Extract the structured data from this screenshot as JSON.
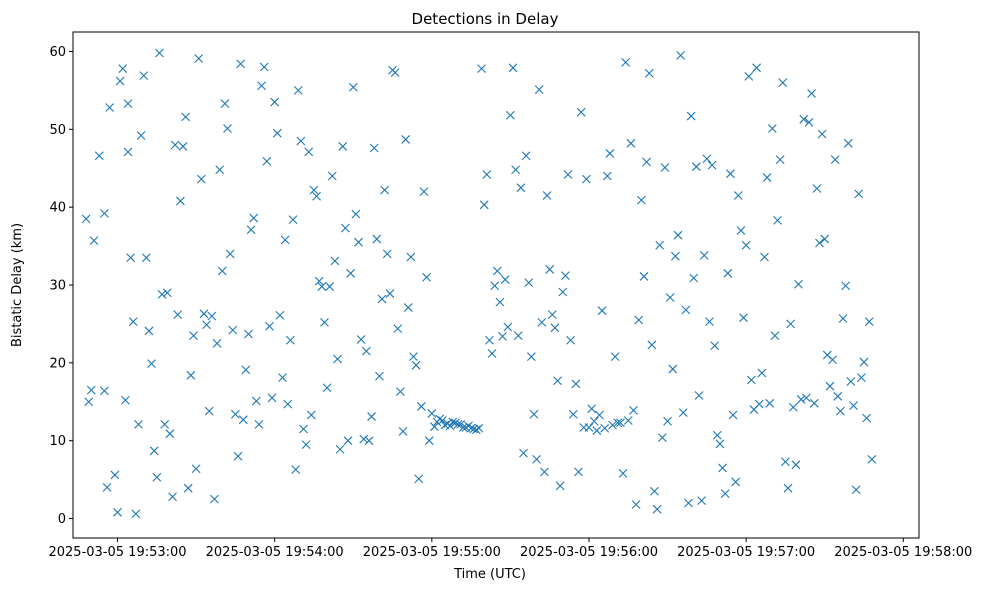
{
  "chart_data": {
    "type": "scatter",
    "title": "Detections in Delay",
    "xlabel": "Time (UTC)",
    "ylabel": "Bistatic Delay (km)",
    "x_unit": "time",
    "xlim": [
      "2025-03-05 19:52:43",
      "2025-03-05 19:58:06"
    ],
    "ylim": [
      -2.5,
      62.5
    ],
    "x_ticks": [
      "2025-03-05 19:53:00",
      "2025-03-05 19:54:00",
      "2025-03-05 19:55:00",
      "2025-03-05 19:56:00",
      "2025-03-05 19:57:00",
      "2025-03-05 19:58:00"
    ],
    "y_ticks": [
      0,
      10,
      20,
      30,
      40,
      50,
      60
    ],
    "grid": false,
    "legend": "none",
    "marker": "x",
    "color": "#1f77b4",
    "series": [
      {
        "x": [
          "19:52:48",
          "19:52:49",
          "19:52:50",
          "19:52:51",
          "19:52:53",
          "19:52:55",
          "19:52:55",
          "19:52:56",
          "19:52:57",
          "19:52:59",
          "19:53:00",
          "19:53:01",
          "19:53:02",
          "19:53:03",
          "19:53:04",
          "19:53:04",
          "19:53:05",
          "19:53:06",
          "19:53:07",
          "19:53:08",
          "19:53:09",
          "19:53:10",
          "19:53:11",
          "19:53:12",
          "19:53:13",
          "19:53:14",
          "19:53:15",
          "19:53:16",
          "19:53:17",
          "19:53:18",
          "19:53:19",
          "19:53:20",
          "19:53:21",
          "19:53:22",
          "19:53:23",
          "19:53:24",
          "19:53:25",
          "19:53:26",
          "19:53:27",
          "19:53:28",
          "19:53:29",
          "19:53:30",
          "19:53:31",
          "19:53:32",
          "19:53:33",
          "19:53:34",
          "19:53:35",
          "19:53:36",
          "19:53:37",
          "19:53:38",
          "19:53:39",
          "19:53:40",
          "19:53:41",
          "19:53:42",
          "19:53:43",
          "19:53:44",
          "19:53:45",
          "19:53:46",
          "19:53:47",
          "19:53:48",
          "19:53:49",
          "19:53:50",
          "19:53:51",
          "19:53:52",
          "19:53:53",
          "19:53:54",
          "19:53:55",
          "19:53:56",
          "19:53:57",
          "19:53:58",
          "19:53:59",
          "19:54:00",
          "19:54:01",
          "19:54:02",
          "19:54:03",
          "19:54:04",
          "19:54:05",
          "19:54:06",
          "19:54:07",
          "19:54:08",
          "19:54:09",
          "19:54:10",
          "19:54:11",
          "19:54:12",
          "19:54:13",
          "19:54:14",
          "19:54:15",
          "19:54:16",
          "19:54:17",
          "19:54:18",
          "19:54:19",
          "19:54:20",
          "19:54:21",
          "19:54:22",
          "19:54:23",
          "19:54:24",
          "19:54:25",
          "19:54:26",
          "19:54:27",
          "19:54:28",
          "19:54:29",
          "19:54:30",
          "19:54:31",
          "19:54:32",
          "19:54:33",
          "19:54:34",
          "19:54:35",
          "19:54:36",
          "19:54:37",
          "19:54:38",
          "19:54:39",
          "19:54:40",
          "19:54:41",
          "19:54:42",
          "19:54:43",
          "19:54:44",
          "19:54:45",
          "19:54:46",
          "19:54:47",
          "19:54:48",
          "19:54:49",
          "19:54:50",
          "19:54:51",
          "19:54:52",
          "19:54:53",
          "19:54:54",
          "19:54:55",
          "19:54:56",
          "19:54:57",
          "19:54:58",
          "19:54:59",
          "19:55:00",
          "19:55:01",
          "19:55:02",
          "19:55:03",
          "19:55:04",
          "19:55:05",
          "19:55:06",
          "19:55:07",
          "19:55:08",
          "19:55:09",
          "19:55:10",
          "19:55:11",
          "19:55:12",
          "19:55:13",
          "19:55:14",
          "19:55:15",
          "19:55:16",
          "19:55:17",
          "19:55:18",
          "19:55:19",
          "19:55:20",
          "19:55:21",
          "19:55:22",
          "19:55:23",
          "19:55:24",
          "19:55:25",
          "19:55:26",
          "19:55:27",
          "19:55:28",
          "19:55:29",
          "19:55:30",
          "19:55:31",
          "19:55:32",
          "19:55:33",
          "19:55:34",
          "19:55:35",
          "19:55:36",
          "19:55:37",
          "19:55:38",
          "19:55:39",
          "19:55:40",
          "19:55:41",
          "19:55:42",
          "19:55:43",
          "19:55:44",
          "19:55:45",
          "19:55:46",
          "19:55:47",
          "19:55:48",
          "19:55:49",
          "19:55:50",
          "19:55:51",
          "19:55:52",
          "19:55:53",
          "19:55:54",
          "19:55:55",
          "19:55:56",
          "19:55:57",
          "19:55:58",
          "19:55:59",
          "19:56:00",
          "19:56:01",
          "19:56:02",
          "19:56:03",
          "19:56:04",
          "19:56:05",
          "19:56:06",
          "19:56:07",
          "19:56:08",
          "19:56:09",
          "19:56:10",
          "19:56:11",
          "19:56:12",
          "19:56:13",
          "19:56:14",
          "19:56:15",
          "19:56:16",
          "19:56:17",
          "19:56:18",
          "19:56:19",
          "19:56:20",
          "19:56:21",
          "19:56:22",
          "19:56:23",
          "19:56:24",
          "19:56:25",
          "19:56:26",
          "19:56:27",
          "19:56:28",
          "19:56:29",
          "19:56:30",
          "19:56:31",
          "19:56:32",
          "19:56:33",
          "19:56:34",
          "19:56:35",
          "19:56:36",
          "19:56:37",
          "19:56:38",
          "19:56:39",
          "19:56:40",
          "19:56:41",
          "19:56:42",
          "19:56:43",
          "19:56:44",
          "19:56:45",
          "19:56:46",
          "19:56:47",
          "19:56:48",
          "19:56:49",
          "19:56:50",
          "19:56:51",
          "19:56:52",
          "19:56:53",
          "19:56:54",
          "19:56:55",
          "19:56:56",
          "19:56:57",
          "19:56:58",
          "19:56:59",
          "19:57:00",
          "19:57:01",
          "19:57:02",
          "19:57:03",
          "19:57:04",
          "19:57:05",
          "19:57:06",
          "19:57:07",
          "19:57:08",
          "19:57:09",
          "19:57:10",
          "19:57:11",
          "19:57:12",
          "19:57:13",
          "19:57:14",
          "19:57:15",
          "19:57:16",
          "19:57:17",
          "19:57:18",
          "19:57:19",
          "19:57:20",
          "19:57:21",
          "19:57:22",
          "19:57:23",
          "19:57:24",
          "19:57:25",
          "19:57:26",
          "19:57:27",
          "19:57:28",
          "19:57:29",
          "19:57:30",
          "19:57:31",
          "19:57:32",
          "19:57:33",
          "19:57:34",
          "19:57:35",
          "19:57:36",
          "19:57:37",
          "19:57:38",
          "19:57:39",
          "19:57:40",
          "19:57:41",
          "19:57:42",
          "19:57:43",
          "19:57:44",
          "19:57:45",
          "19:57:46",
          "19:57:47",
          "19:57:48"
        ],
        "y": [
          38.5,
          15.0,
          16.5,
          35.7,
          46.6,
          16.4,
          39.2,
          4.0,
          52.8,
          5.6,
          0.8,
          56.2,
          57.8,
          15.2,
          53.3,
          47.1,
          33.5,
          25.3,
          0.6,
          12.1,
          49.2,
          56.9,
          33.5,
          24.1,
          19.9,
          8.7,
          5.3,
          59.8,
          28.8,
          12.1,
          29.0,
          10.9,
          2.8,
          48.0,
          26.2,
          40.8,
          47.8,
          51.6,
          3.9,
          18.4,
          23.5,
          6.4,
          59.1,
          43.6,
          26.3,
          24.9,
          13.8,
          26.0,
          2.5,
          22.5,
          44.8,
          31.8,
          53.3,
          50.1,
          34.0,
          24.2,
          13.4,
          8.0,
          58.4,
          12.7,
          19.1,
          23.7,
          37.1,
          38.6,
          15.1,
          12.1,
          55.6,
          58.0,
          45.9,
          24.7,
          15.5,
          53.5,
          49.5,
          26.1,
          18.1,
          35.8,
          14.7,
          22.9,
          38.4,
          6.3,
          55.0,
          48.5,
          11.5,
          9.5,
          47.1,
          13.3,
          42.2,
          41.4,
          30.5,
          29.8,
          25.2,
          16.8,
          29.8,
          44.0,
          33.1,
          20.5,
          8.9,
          47.8,
          37.3,
          10.0,
          31.5,
          55.4,
          39.1,
          35.5,
          23.0,
          10.2,
          21.5,
          10.0,
          13.1,
          47.6,
          35.9,
          18.3,
          28.2,
          42.2,
          34.0,
          28.9,
          57.6,
          57.3,
          24.4,
          16.3,
          11.2,
          48.7,
          27.1,
          33.6,
          20.8,
          19.7,
          5.1,
          14.4,
          42.0,
          31.0,
          10.0,
          13.5,
          11.8,
          12.4,
          12.8,
          12.6,
          12.0,
          12.2,
          11.9,
          12.4,
          12.3,
          12.1,
          12.1,
          11.7,
          11.7,
          11.9,
          11.6,
          11.5,
          11.4,
          11.6,
          57.8,
          40.3,
          44.2,
          22.9,
          21.2,
          29.9,
          31.8,
          27.8,
          23.4,
          30.7,
          24.6,
          51.8,
          57.9,
          44.8,
          23.5,
          42.5,
          8.4,
          46.6,
          30.3,
          20.8,
          13.4,
          7.6,
          55.1,
          25.2,
          6.0,
          41.5,
          32.0,
          26.2,
          24.5,
          17.7,
          4.2,
          29.1,
          31.2,
          44.2,
          22.9,
          13.4,
          17.3,
          6.0,
          52.2,
          11.7,
          43.6,
          11.7,
          14.1,
          12.5,
          11.3,
          13.3,
          26.7,
          11.6,
          44.0,
          46.9,
          12.0,
          20.8,
          12.3,
          12.3,
          5.8,
          58.6,
          12.6,
          48.2,
          13.9,
          1.8,
          25.5,
          40.9,
          31.1,
          45.8,
          57.2,
          22.3,
          3.5,
          1.2,
          35.1,
          10.4,
          45.1,
          12.5,
          28.4,
          19.2,
          33.7,
          36.4,
          59.5,
          13.6,
          26.8,
          2.0,
          51.7,
          30.9,
          45.2,
          15.8,
          2.3,
          33.8,
          46.2,
          25.3,
          45.4,
          22.2,
          10.7,
          9.6,
          6.5,
          3.2,
          31.5,
          44.3,
          13.3,
          4.7,
          41.5,
          37.0,
          25.8,
          35.1,
          56.8,
          17.8,
          14.0,
          57.9,
          14.7,
          18.7,
          33.6,
          43.8,
          14.8,
          50.1,
          23.5,
          38.3,
          46.1,
          56.0,
          7.3,
          3.9,
          25.0,
          14.3,
          6.9,
          30.1,
          15.3,
          51.3,
          15.5,
          50.9,
          54.6,
          14.8,
          42.4,
          35.4,
          49.4,
          35.9,
          21.0,
          17.0,
          20.4,
          46.1,
          15.7,
          13.8,
          25.7,
          29.9,
          48.2,
          17.6,
          14.5,
          3.7,
          41.7,
          18.1,
          20.1,
          12.9,
          25.3,
          7.6
        ]
      }
    ]
  }
}
